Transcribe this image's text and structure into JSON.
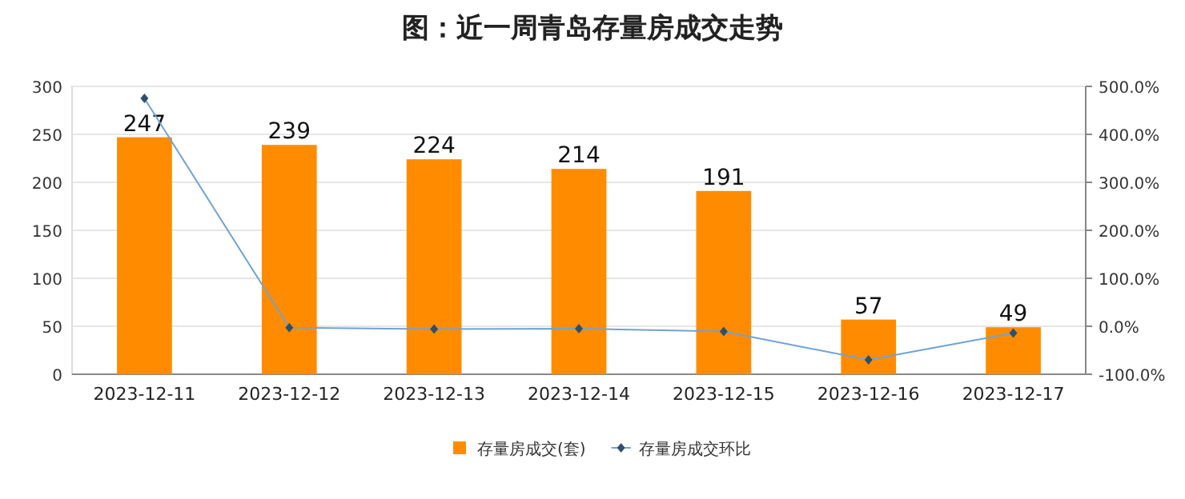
{
  "chart_data": {
    "type": "bar",
    "title": "图：近一周青岛存量房成交走势",
    "categories": [
      "2023-12-11",
      "2023-12-12",
      "2023-12-13",
      "2023-12-14",
      "2023-12-15",
      "2023-12-16",
      "2023-12-17"
    ],
    "series": [
      {
        "name": "存量房成交(套)",
        "color": "#ff8c00",
        "values": [
          247,
          239,
          224,
          214,
          191,
          57,
          49
        ],
        "value_labels": [
          "247",
          "239",
          "224",
          "214",
          "191",
          "57",
          "49"
        ]
      },
      {
        "name": "存量房成交环比",
        "type": "line",
        "axis": "y2",
        "color": "#6fa3d4",
        "marker": "diamond",
        "values": [
          475,
          -3,
          -6,
          -5,
          -11,
          -70,
          -14
        ]
      }
    ],
    "ylim": [
      0,
      300
    ],
    "yticks": [
      0,
      50,
      100,
      150,
      200,
      250,
      300
    ],
    "y2lim": [
      -100,
      500
    ],
    "y2ticks": [
      {
        "value": -100,
        "label": "-100.0%"
      },
      {
        "value": 0,
        "label": "0.0%"
      },
      {
        "value": 100,
        "label": "100.0%"
      },
      {
        "value": 200,
        "label": "200.0%"
      },
      {
        "value": 300,
        "label": "300.0%"
      },
      {
        "value": 400,
        "label": "400.0%"
      },
      {
        "value": 500,
        "label": "500.0%"
      }
    ],
    "grid": "y",
    "legend": "bottom"
  }
}
